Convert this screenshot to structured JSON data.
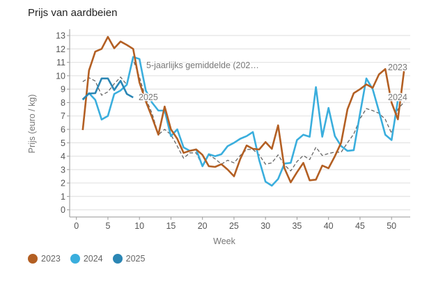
{
  "chart_data": {
    "type": "line",
    "title": "Prijs van aardbeien",
    "xlabel": "Week",
    "ylabel": "Prijs (euro / kg)",
    "xlim": [
      0,
      53
    ],
    "ylim": [
      0,
      13
    ],
    "xticks": [
      0,
      5,
      10,
      15,
      20,
      25,
      30,
      35,
      40,
      45,
      50
    ],
    "yticks": [
      0,
      1,
      2,
      3,
      4,
      5,
      6,
      7,
      8,
      9,
      10,
      11,
      12,
      13
    ],
    "grid": "horizontal",
    "legend_position": "bottom-left",
    "series": [
      {
        "name": "2023",
        "color": "#b35f23",
        "style": "solid",
        "end_label": "2023",
        "x": [
          1,
          2,
          3,
          4,
          5,
          6,
          7,
          8,
          9,
          10,
          11,
          12,
          13,
          14,
          15,
          16,
          17,
          18,
          19,
          20,
          21,
          22,
          23,
          24,
          25,
          26,
          27,
          28,
          29,
          30,
          31,
          32,
          33,
          34,
          35,
          36,
          37,
          38,
          39,
          40,
          41,
          42,
          43,
          44,
          45,
          46,
          47,
          48,
          49,
          50,
          51,
          52
        ],
        "values": [
          5.95,
          10.4,
          11.8,
          12.0,
          12.9,
          12.05,
          12.55,
          12.3,
          12.0,
          9.5,
          8.1,
          6.9,
          5.6,
          7.7,
          6.0,
          5.3,
          4.25,
          4.4,
          4.5,
          4.1,
          3.25,
          3.2,
          3.4,
          3.0,
          2.5,
          3.8,
          4.8,
          4.55,
          4.5,
          5.05,
          4.55,
          6.3,
          3.1,
          2.05,
          2.8,
          3.5,
          2.2,
          2.25,
          3.3,
          3.1,
          4.0,
          5.0,
          7.5,
          8.7,
          9.0,
          9.35,
          9.1,
          10.1,
          10.5,
          8.0,
          6.75,
          10.45
        ]
      },
      {
        "name": "2024",
        "color": "#3aaedd",
        "style": "solid",
        "end_label": "2024",
        "x": [
          1,
          2,
          3,
          4,
          5,
          6,
          7,
          8,
          9,
          10,
          11,
          12,
          13,
          14,
          15,
          16,
          17,
          18,
          19,
          20,
          21,
          22,
          23,
          24,
          25,
          26,
          27,
          28,
          29,
          30,
          31,
          32,
          33,
          34,
          35,
          36,
          37,
          38,
          39,
          40,
          41,
          42,
          43,
          44,
          45,
          46,
          47,
          48,
          49,
          50,
          51
        ],
        "values": [
          8.2,
          8.7,
          8.2,
          6.73,
          7.0,
          8.64,
          8.9,
          9.33,
          11.4,
          11.25,
          8.9,
          8.0,
          7.4,
          7.4,
          5.5,
          6.0,
          4.65,
          4.4,
          4.5,
          3.25,
          4.15,
          4.0,
          4.15,
          4.75,
          5.0,
          5.3,
          5.5,
          5.8,
          3.7,
          2.1,
          1.8,
          2.3,
          3.45,
          3.5,
          5.2,
          5.6,
          5.45,
          9.15,
          5.45,
          7.6,
          5.5,
          4.75,
          4.4,
          4.45,
          7.2,
          9.8,
          9.0,
          7.35,
          5.6,
          5.2,
          8.2
        ]
      },
      {
        "name": "2025",
        "color": "#2b86b4",
        "style": "solid",
        "end_label": "2025",
        "x": [
          1,
          2,
          3,
          4,
          5,
          6,
          7,
          8,
          9
        ],
        "values": [
          8.24,
          8.67,
          8.7,
          9.8,
          9.8,
          8.93,
          9.62,
          8.64,
          8.38
        ]
      },
      {
        "name": "5-jaarlijks gemiddelde (202…",
        "color": "#666666",
        "style": "dashed",
        "end_label": "5-jaarlijks gemiddelde (202…",
        "x": [
          1,
          2,
          3,
          4,
          5,
          6,
          7,
          8,
          9,
          10,
          11,
          12,
          13,
          14,
          15,
          16,
          17,
          18,
          19,
          20,
          21,
          22,
          23,
          24,
          25,
          26,
          27,
          28,
          29,
          30,
          31,
          32,
          33,
          34,
          35,
          36,
          37,
          38,
          39,
          40,
          41,
          42,
          43,
          44,
          45,
          46,
          47,
          48,
          49,
          50,
          51,
          52
        ],
        "values": [
          9.56,
          9.85,
          9.6,
          8.55,
          8.8,
          9.4,
          9.9,
          9.33,
          11.2,
          9.9,
          8.3,
          7.2,
          5.6,
          6.0,
          5.6,
          4.75,
          3.85,
          4.25,
          4.25,
          3.25,
          4.1,
          3.8,
          3.4,
          3.7,
          3.5,
          4.05,
          4.5,
          4.5,
          4.1,
          3.4,
          3.5,
          4.1,
          3.35,
          2.9,
          3.6,
          4.05,
          3.75,
          4.67,
          4.05,
          4.2,
          4.3,
          4.3,
          5.0,
          5.65,
          6.8,
          7.55,
          7.4,
          7.2,
          6.75,
          5.7,
          7.5,
          8.05
        ]
      }
    ],
    "legend": [
      {
        "label": "2023",
        "color": "#b35f23"
      },
      {
        "label": "2024",
        "color": "#3aaedd"
      },
      {
        "label": "2025",
        "color": "#2b86b4"
      }
    ]
  }
}
